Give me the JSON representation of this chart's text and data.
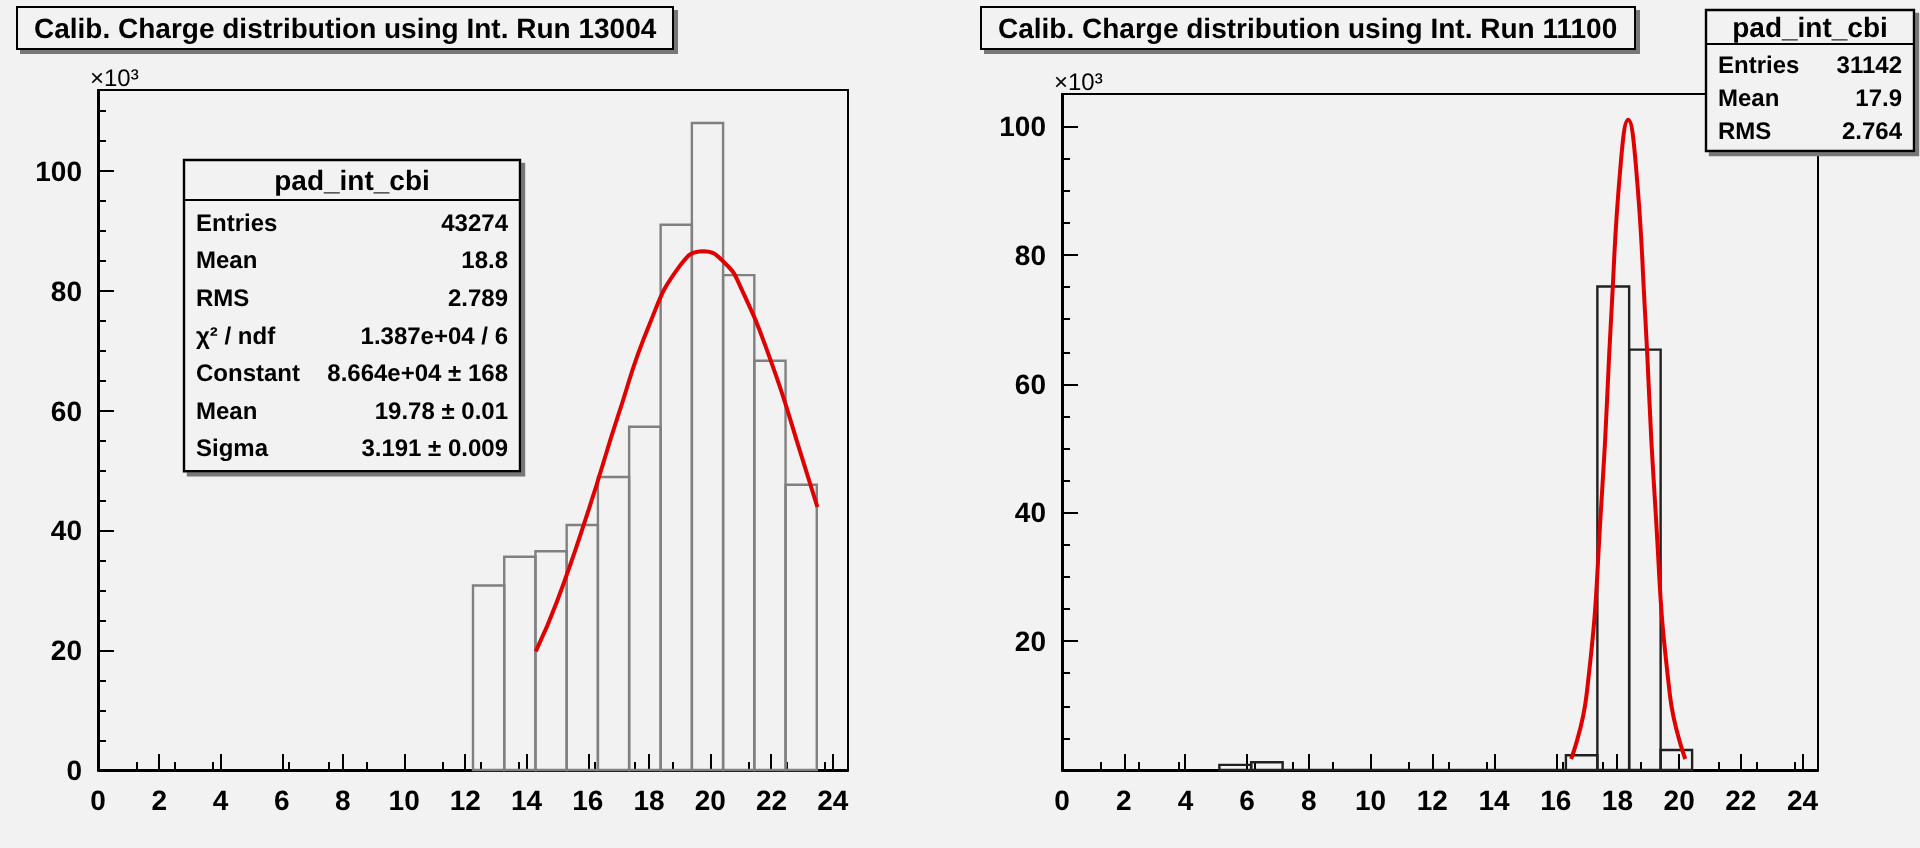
{
  "chart_data": [
    {
      "type": "histogram",
      "title": "Calib. Charge distribution using Int. Run 13004",
      "xlim": [
        0,
        24.5
      ],
      "xticks": [
        0,
        2,
        4,
        6,
        8,
        10,
        12,
        14,
        16,
        18,
        20,
        22,
        24
      ],
      "ylim": [
        0,
        113.5
      ],
      "yticks": [
        0,
        20,
        40,
        60,
        80,
        100
      ],
      "grid": false,
      "series": [
        {
          "color": "#808080",
          "bins": [
            12.25,
            13.27,
            14.29,
            15.31,
            16.33,
            17.35,
            18.38,
            19.4,
            20.42,
            21.44,
            22.46,
            23.48
          ],
          "values": [
            30.8,
            35.6,
            36.5,
            40.9,
            48.9,
            57.3,
            91.0,
            108,
            82.6,
            68.3,
            47.6
          ]
        },
        {
          "type": "line",
          "color": "#e00000",
          "x": [
            14.3,
            15,
            16,
            17,
            18,
            19,
            19.78,
            20.5,
            21,
            22,
            23,
            23.5
          ],
          "values": [
            19.8,
            28.2,
            43.0,
            59.3,
            74.2,
            84.1,
            86.6,
            84.5,
            80.5,
            68.0,
            52.1,
            43.9
          ]
        }
      ],
      "annotations": [
        "×10³",
        "pad_int_cbi",
        "Entries",
        "43274",
        "Mean",
        "18.8",
        "RMS",
        "2.789",
        "χ² / ndf",
        "1.387e+04 / 6",
        "Constant",
        "8.664e+04 ± 168",
        "Mean",
        "19.78 ± 0.01",
        "Sigma",
        "3.191 ± 0.009"
      ]
    },
    {
      "type": "histogram",
      "title": "Calib. Charge distribution using Int. Run 11100",
      "xlim": [
        0,
        24.5
      ],
      "xticks": [
        0,
        2,
        4,
        6,
        8,
        10,
        12,
        14,
        16,
        18,
        20,
        22,
        24
      ],
      "ylim": [
        0,
        105
      ],
      "yticks": [
        {
          "value": 0,
          "label": null
        },
        20,
        40,
        60,
        80,
        100
      ],
      "grid": false,
      "series": [
        {
          "color": "#202020",
          "bins": [
            5.1,
            6.13,
            7.15,
            8.17,
            9.19,
            10.21,
            11.23,
            12.25,
            13.27,
            14.29,
            15.31,
            16.33,
            17.35,
            18.38,
            19.4,
            20.42
          ],
          "values": [
            0.8,
            1.2,
            0,
            0,
            0,
            0,
            0,
            0,
            0,
            0,
            0,
            2.3,
            75.1,
            65.3,
            3.1
          ]
        },
        {
          "type": "line",
          "color": "#e00000",
          "x": [
            16.5,
            17,
            17.5,
            17.8,
            18.1,
            18.35,
            18.6,
            18.9,
            19.2,
            19.7,
            20.2
          ],
          "values": [
            1.7,
            11.7,
            43,
            70.6,
            93.8,
            101,
            93.8,
            70.6,
            43,
            11.7,
            1.7
          ]
        }
      ],
      "annotations": [
        "×10³",
        "pad_int_cbi",
        "Entries",
        "31142",
        "Mean",
        "17.9",
        "RMS",
        "2.764"
      ]
    }
  ]
}
